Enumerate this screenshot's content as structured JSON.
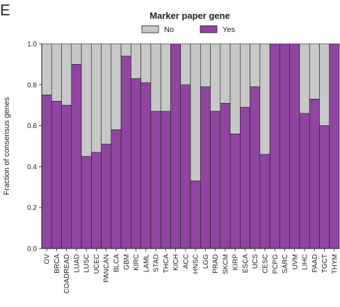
{
  "panel_letter": "E",
  "legend": {
    "title": "Marker paper gene",
    "items": [
      {
        "label": "No",
        "color": "#c8c8c8"
      },
      {
        "label": "Yes",
        "color": "#9045a0"
      }
    ]
  },
  "colors": {
    "no": "#c8c8c8",
    "yes": "#9045a0",
    "edge": "#1a1a1a"
  },
  "chart_data": {
    "type": "bar",
    "stacked": true,
    "title": "Marker paper gene",
    "xlabel": "",
    "ylabel": "Fraction of consensus genes",
    "ylim": [
      0,
      1
    ],
    "yticks": [
      "0.0",
      "0.2",
      "0.4",
      "0.6",
      "0.8",
      "1.0"
    ],
    "ytick_values": [
      0,
      0.2,
      0.4,
      0.6,
      0.8,
      1.0
    ],
    "legend_position": "top",
    "grid": false,
    "categories": [
      "OV",
      "BRCA",
      "COADREAD",
      "LUAD",
      "LUSC",
      "UCEC",
      "PANCAN",
      "BLCA",
      "GBM",
      "KIRC",
      "LAML",
      "STAD",
      "THCA",
      "KICH",
      "ACC",
      "HNSC",
      "LGG",
      "PRAD",
      "SKCM",
      "KIRP",
      "ESCA",
      "UCS",
      "CESC",
      "PCPG",
      "SARC",
      "UVM",
      "LIHC",
      "PAAD",
      "TGCT",
      "THYM"
    ],
    "series": [
      {
        "name": "Yes",
        "values": [
          0.75,
          0.72,
          0.7,
          0.9,
          0.45,
          0.47,
          0.51,
          0.58,
          0.94,
          0.83,
          0.81,
          0.67,
          0.67,
          1.0,
          0.8,
          0.33,
          0.79,
          0.67,
          0.71,
          0.56,
          0.69,
          0.79,
          0.46,
          1.0,
          1.0,
          1.0,
          0.66,
          0.73,
          0.6,
          1.0
        ]
      },
      {
        "name": "No",
        "values": [
          0.25,
          0.28,
          0.3,
          0.1,
          0.55,
          0.53,
          0.49,
          0.42,
          0.06,
          0.17,
          0.19,
          0.33,
          0.33,
          0.0,
          0.2,
          0.67,
          0.21,
          0.33,
          0.29,
          0.44,
          0.31,
          0.21,
          0.54,
          0.0,
          0.0,
          0.0,
          0.34,
          0.27,
          0.4,
          0.0
        ]
      }
    ]
  }
}
